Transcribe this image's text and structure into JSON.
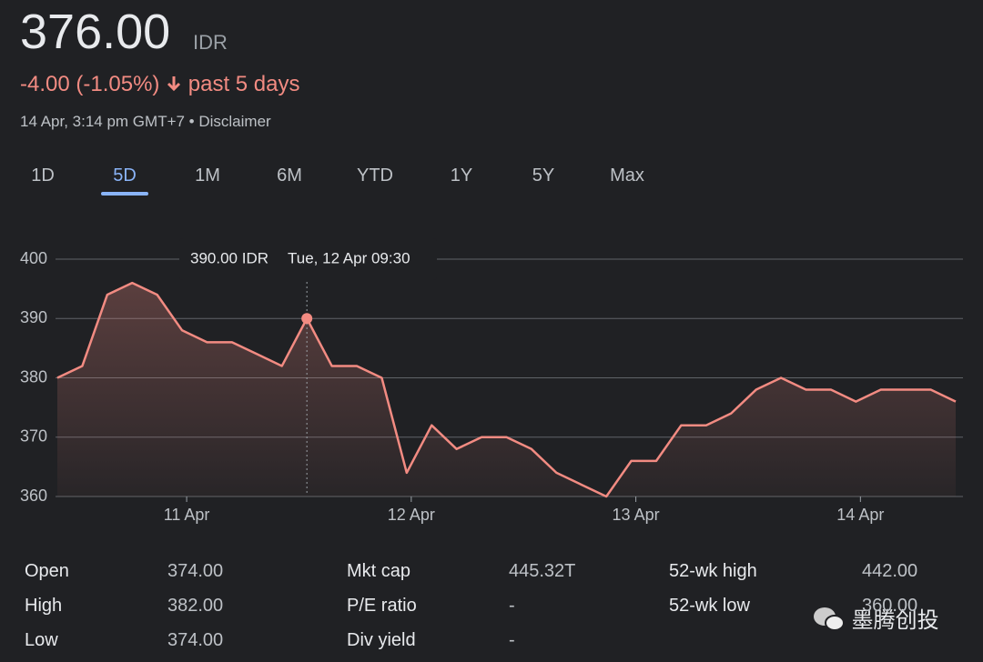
{
  "header": {
    "price": "376.00",
    "currency": "IDR",
    "change": "-4.00 (-1.05%)",
    "period": "past 5 days",
    "timestamp": "14 Apr, 3:14 pm GMT+7 • Disclaimer"
  },
  "tabs": {
    "items": [
      "1D",
      "5D",
      "1M",
      "6M",
      "YTD",
      "1Y",
      "5Y",
      "Max"
    ],
    "active": 1
  },
  "chart_data": {
    "type": "line",
    "categories": [
      null,
      null,
      null,
      null,
      null,
      "11 Apr",
      null,
      null,
      null,
      null,
      null,
      null,
      null,
      null,
      "12 Apr",
      null,
      null,
      null,
      null,
      null,
      null,
      null,
      null,
      "13 Apr",
      null,
      null,
      null,
      null,
      null,
      null,
      null,
      null,
      "14 Apr",
      null,
      null,
      null,
      null
    ],
    "series": [
      {
        "name": "IDR",
        "color": "#f28b82",
        "values": [
          380,
          382,
          394,
          396,
          394,
          388,
          386,
          386,
          384,
          382,
          390,
          382,
          382,
          380,
          364,
          372,
          368,
          370,
          370,
          368,
          364,
          362,
          360,
          366,
          366,
          372,
          372,
          374,
          378,
          380,
          378,
          378,
          376,
          378,
          378,
          378,
          376
        ]
      }
    ],
    "ylim": [
      360,
      400
    ],
    "yticks": [
      360,
      370,
      380,
      390,
      400
    ],
    "grid": true,
    "tooltip": {
      "index": 10,
      "value": "390.00 IDR",
      "time": "Tue, 12 Apr 09:30"
    }
  },
  "stats": {
    "rows": [
      [
        "Open",
        "374.00",
        "Mkt cap",
        "445.32T",
        "52-wk high",
        "442.00"
      ],
      [
        "High",
        "382.00",
        "P/E ratio",
        "-",
        "52-wk low",
        "360.00"
      ],
      [
        "Low",
        "374.00",
        "Div yield",
        "-"
      ]
    ]
  },
  "watermark": "墨腾创投"
}
